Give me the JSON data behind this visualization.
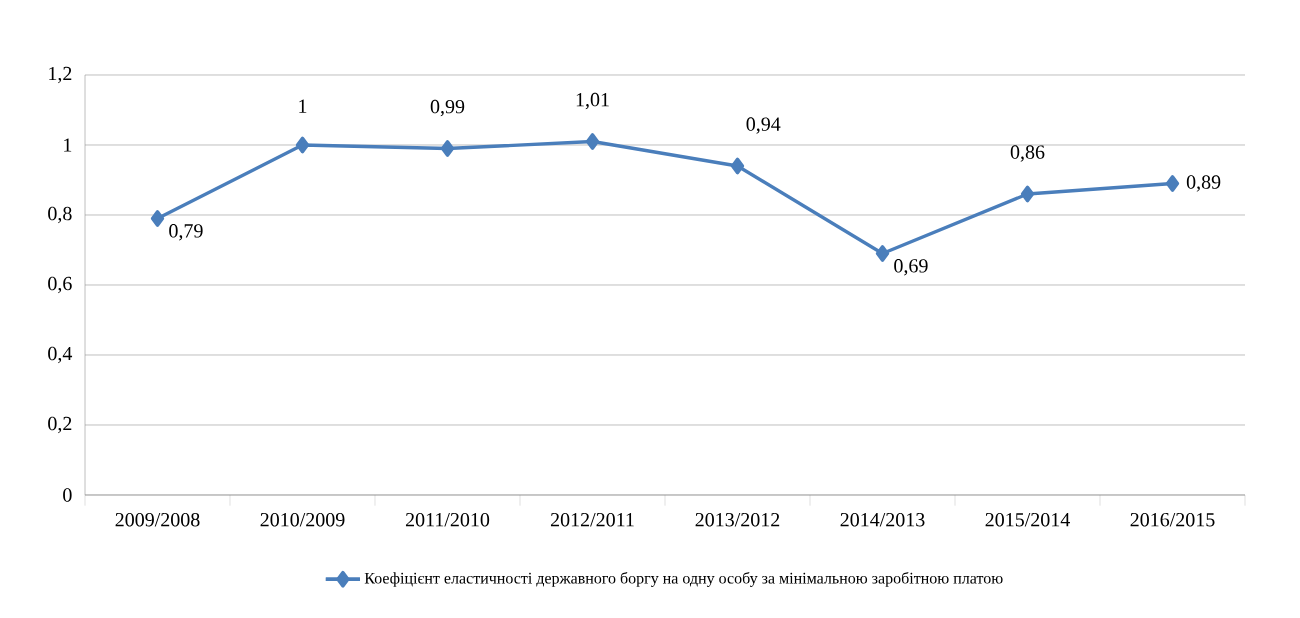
{
  "chart_data": {
    "type": "line",
    "categories": [
      "2009/2008",
      "2010/2009",
      "2011/2010",
      "2012/2011",
      "2013/2012",
      "2014/2013",
      "2015/2014",
      "2016/2015"
    ],
    "series": [
      {
        "name": "Коефіцієнт еластичності державного боргу на одну особу за мінімальною заробітною платою",
        "color": "#4a7ebb",
        "values": [
          0.79,
          1,
          0.99,
          1.01,
          0.94,
          0.69,
          0.86,
          0.89
        ],
        "value_labels": [
          "0,79",
          "1",
          "0,99",
          "1,01",
          "0,94",
          "0,69",
          "0,86",
          "0,89"
        ]
      }
    ],
    "ylim": [
      0,
      1.2
    ],
    "yticks": [
      0,
      {
        "value": 0.2,
        "label": "0,2"
      },
      {
        "value": 0.4,
        "label": "0,4"
      },
      {
        "value": 0.6,
        "label": "0,6"
      },
      {
        "value": 0.8,
        "label": "0,8"
      },
      1,
      {
        "value": 1.2,
        "label": "1,2"
      }
    ],
    "grid": "y",
    "legend": "bottom",
    "marker": "diamond",
    "line_style": "solid"
  }
}
